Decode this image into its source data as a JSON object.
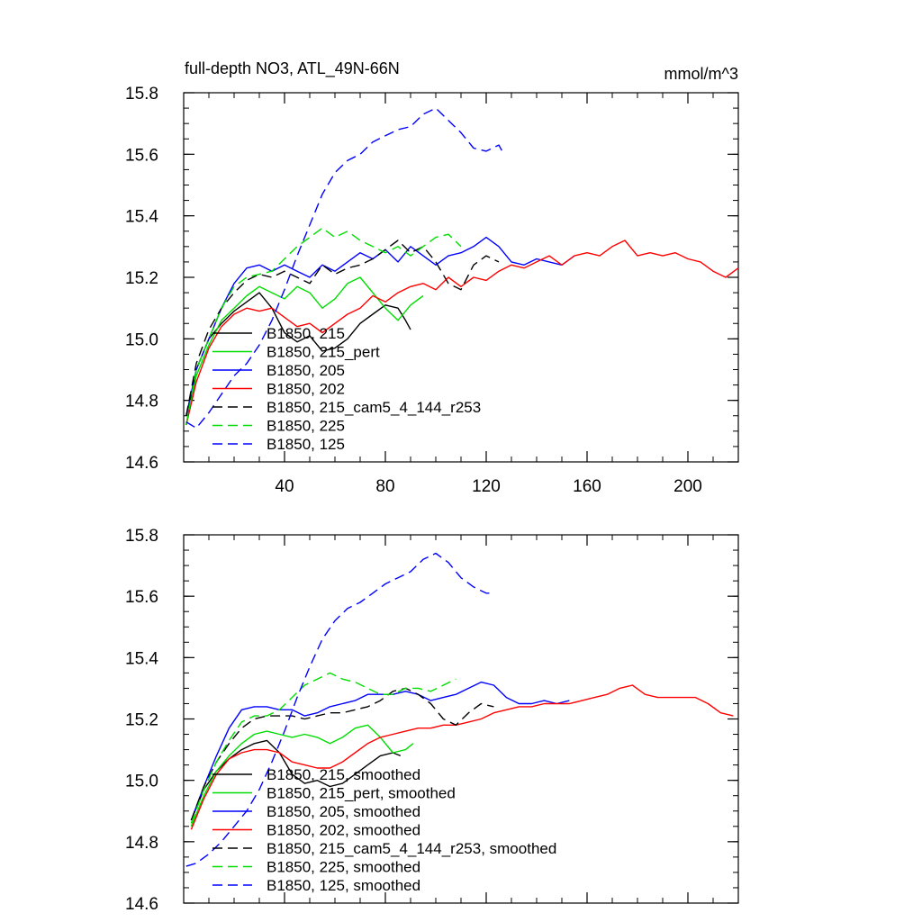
{
  "chart_data": [
    {
      "type": "line",
      "title": "full-depth NO3, ATL_49N-66N",
      "units": "mmol/m^3",
      "xlabel": "",
      "ylabel": "",
      "xlim": [
        0,
        220
      ],
      "ylim": [
        14.6,
        15.8
      ],
      "xticks": [
        40,
        80,
        120,
        160,
        200
      ],
      "yticks": [
        14.6,
        14.8,
        15.0,
        15.2,
        15.4,
        15.6,
        15.8
      ],
      "xtick_labels": [
        "40",
        "80",
        "120",
        "160",
        "200"
      ],
      "ytick_labels": [
        "14.6",
        "14.8",
        "15.0",
        "15.2",
        "15.4",
        "15.6",
        "15.8"
      ],
      "legend_position": "lower-left",
      "grid": false,
      "series": [
        {
          "name": "B1850, 215",
          "color": "#000000",
          "dash": "solid",
          "x": [
            1,
            5,
            10,
            15,
            20,
            25,
            30,
            35,
            40,
            45,
            50,
            55,
            60,
            65,
            70,
            75,
            80,
            85,
            88,
            90
          ],
          "y": [
            14.72,
            14.9,
            15.0,
            15.05,
            15.09,
            15.12,
            15.15,
            15.1,
            15.02,
            14.99,
            15.01,
            14.96,
            14.97,
            15.0,
            15.05,
            15.08,
            15.11,
            15.1,
            15.06,
            15.03
          ]
        },
        {
          "name": "B1850, 215_pert",
          "color": "#00dd00",
          "dash": "solid",
          "x": [
            1,
            5,
            10,
            15,
            20,
            25,
            30,
            35,
            40,
            45,
            50,
            55,
            60,
            65,
            70,
            75,
            80,
            85,
            90,
            95
          ],
          "y": [
            14.72,
            14.88,
            14.98,
            15.06,
            15.1,
            15.14,
            15.17,
            15.15,
            15.13,
            15.17,
            15.15,
            15.1,
            15.13,
            15.18,
            15.2,
            15.15,
            15.1,
            15.06,
            15.11,
            15.14
          ]
        },
        {
          "name": "B1850, 205",
          "color": "#0000ff",
          "dash": "solid",
          "x": [
            1,
            5,
            10,
            15,
            20,
            25,
            30,
            35,
            40,
            45,
            50,
            55,
            60,
            65,
            70,
            75,
            80,
            85,
            90,
            95,
            100,
            105,
            110,
            115,
            120,
            125,
            130,
            135,
            140,
            145,
            150,
            155
          ],
          "y": [
            14.75,
            14.9,
            15.0,
            15.1,
            15.18,
            15.23,
            15.24,
            15.22,
            15.24,
            15.22,
            15.2,
            15.24,
            15.22,
            15.25,
            15.28,
            15.26,
            15.29,
            15.25,
            15.3,
            15.27,
            15.24,
            15.27,
            15.28,
            15.3,
            15.33,
            15.3,
            15.25,
            15.24,
            15.26,
            15.25,
            15.24,
            15.27
          ]
        },
        {
          "name": "B1850, 202",
          "color": "#ff0000",
          "dash": "solid",
          "x": [
            1,
            5,
            10,
            15,
            20,
            25,
            30,
            35,
            40,
            45,
            50,
            55,
            60,
            65,
            70,
            75,
            80,
            85,
            90,
            95,
            100,
            105,
            110,
            115,
            120,
            125,
            130,
            135,
            140,
            145,
            150,
            155,
            160,
            165,
            170,
            175,
            180,
            185,
            190,
            195,
            200,
            205,
            210,
            215,
            220
          ],
          "y": [
            14.72,
            14.86,
            14.97,
            15.04,
            15.08,
            15.1,
            15.09,
            15.1,
            15.07,
            15.04,
            15.05,
            15.02,
            15.05,
            15.08,
            15.1,
            15.14,
            15.12,
            15.15,
            15.17,
            15.18,
            15.16,
            15.2,
            15.17,
            15.2,
            15.19,
            15.22,
            15.24,
            15.23,
            15.25,
            15.27,
            15.24,
            15.27,
            15.28,
            15.27,
            15.3,
            15.32,
            15.27,
            15.28,
            15.27,
            15.28,
            15.26,
            15.25,
            15.22,
            15.2,
            15.23
          ]
        },
        {
          "name": "B1850, 215_cam5_4_144_r253",
          "color": "#000000",
          "dash": "dashed",
          "x": [
            1,
            5,
            10,
            15,
            20,
            25,
            30,
            35,
            40,
            45,
            50,
            55,
            60,
            65,
            70,
            75,
            80,
            85,
            90,
            95,
            100,
            105,
            110,
            115,
            120,
            125
          ],
          "y": [
            14.75,
            14.92,
            15.03,
            15.1,
            15.15,
            15.19,
            15.21,
            15.2,
            15.22,
            15.2,
            15.18,
            15.24,
            15.21,
            15.23,
            15.24,
            15.26,
            15.29,
            15.32,
            15.28,
            15.3,
            15.25,
            15.18,
            15.16,
            15.24,
            15.27,
            15.25
          ]
        },
        {
          "name": "B1850, 225",
          "color": "#00dd00",
          "dash": "dashed",
          "x": [
            1,
            5,
            10,
            15,
            20,
            25,
            30,
            35,
            40,
            45,
            50,
            55,
            60,
            65,
            70,
            75,
            80,
            85,
            90,
            95,
            100,
            105,
            110
          ],
          "y": [
            14.72,
            14.9,
            15.0,
            15.1,
            15.17,
            15.2,
            15.21,
            15.22,
            15.26,
            15.3,
            15.33,
            15.36,
            15.33,
            15.35,
            15.32,
            15.3,
            15.28,
            15.3,
            15.27,
            15.3,
            15.33,
            15.34,
            15.3
          ]
        },
        {
          "name": "B1850, 125",
          "color": "#0000ff",
          "dash": "dashed",
          "x": [
            1,
            5,
            10,
            15,
            20,
            25,
            30,
            35,
            40,
            45,
            50,
            55,
            60,
            65,
            70,
            75,
            80,
            85,
            90,
            95,
            100,
            105,
            110,
            115,
            120,
            125,
            127
          ],
          "y": [
            14.73,
            14.71,
            14.76,
            14.82,
            14.88,
            14.92,
            14.98,
            15.06,
            15.16,
            15.27,
            15.37,
            15.47,
            15.54,
            15.58,
            15.6,
            15.64,
            15.66,
            15.68,
            15.69,
            15.73,
            15.75,
            15.71,
            15.67,
            15.62,
            15.61,
            15.63,
            15.6
          ]
        }
      ]
    },
    {
      "type": "line",
      "title": "",
      "xlabel": "",
      "ylabel": "",
      "xlim": [
        0,
        220
      ],
      "ylim": [
        14.6,
        15.8
      ],
      "xticks": [
        40,
        80,
        120,
        160,
        200
      ],
      "yticks": [
        14.6,
        14.8,
        15.0,
        15.2,
        15.4,
        15.6,
        15.8
      ],
      "ytick_labels": [
        "14.6",
        "14.8",
        "15.0",
        "15.2",
        "15.4",
        "15.6",
        "15.8"
      ],
      "legend_position": "lower-left",
      "grid": false,
      "series": [
        {
          "name": "B1850, 215, smoothed",
          "color": "#000000",
          "dash": "solid",
          "x": [
            3,
            8,
            13,
            18,
            23,
            28,
            33,
            38,
            43,
            48,
            53,
            58,
            63,
            68,
            73,
            78,
            83,
            86
          ],
          "y": [
            14.87,
            14.97,
            15.03,
            15.07,
            15.1,
            15.12,
            15.13,
            15.09,
            15.02,
            14.99,
            15.0,
            14.98,
            14.99,
            15.02,
            15.05,
            15.08,
            15.09,
            15.08
          ]
        },
        {
          "name": "B1850, 215_pert, smoothed",
          "color": "#00dd00",
          "dash": "solid",
          "x": [
            3,
            8,
            13,
            18,
            23,
            28,
            33,
            38,
            43,
            48,
            53,
            58,
            63,
            68,
            73,
            78,
            83,
            88,
            91
          ],
          "y": [
            14.85,
            14.95,
            15.03,
            15.08,
            15.12,
            15.15,
            15.16,
            15.15,
            15.14,
            15.15,
            15.14,
            15.12,
            15.14,
            15.17,
            15.18,
            15.14,
            15.09,
            15.1,
            15.12
          ]
        },
        {
          "name": "B1850, 205, smoothed",
          "color": "#0000ff",
          "dash": "solid",
          "x": [
            3,
            8,
            13,
            18,
            23,
            28,
            33,
            38,
            43,
            48,
            53,
            58,
            63,
            68,
            73,
            78,
            83,
            88,
            93,
            98,
            103,
            108,
            113,
            118,
            123,
            128,
            133,
            138,
            143,
            148,
            153
          ],
          "y": [
            14.87,
            14.98,
            15.08,
            15.17,
            15.23,
            15.24,
            15.24,
            15.23,
            15.23,
            15.21,
            15.22,
            15.24,
            15.25,
            15.26,
            15.28,
            15.28,
            15.28,
            15.29,
            15.28,
            15.26,
            15.27,
            15.28,
            15.3,
            15.32,
            15.31,
            15.27,
            15.25,
            15.25,
            15.26,
            15.25,
            15.26
          ]
        },
        {
          "name": "B1850, 202, smoothed",
          "color": "#ff0000",
          "dash": "solid",
          "x": [
            3,
            8,
            13,
            18,
            23,
            28,
            33,
            38,
            43,
            48,
            53,
            58,
            63,
            68,
            73,
            78,
            83,
            88,
            93,
            98,
            103,
            108,
            113,
            118,
            123,
            128,
            133,
            138,
            143,
            148,
            153,
            158,
            163,
            168,
            173,
            178,
            183,
            188,
            193,
            198,
            203,
            208,
            213,
            218
          ],
          "y": [
            14.84,
            14.94,
            15.02,
            15.07,
            15.09,
            15.1,
            15.1,
            15.09,
            15.06,
            15.05,
            15.04,
            15.04,
            15.06,
            15.09,
            15.12,
            15.14,
            15.15,
            15.16,
            15.17,
            15.17,
            15.18,
            15.18,
            15.19,
            15.2,
            15.22,
            15.23,
            15.24,
            15.24,
            15.25,
            15.25,
            15.25,
            15.26,
            15.27,
            15.28,
            15.3,
            15.31,
            15.28,
            15.27,
            15.27,
            15.27,
            15.27,
            15.25,
            15.22,
            15.21
          ]
        },
        {
          "name": "B1850, 215_cam5_4_144_r253, smoothed",
          "color": "#000000",
          "dash": "dashed",
          "x": [
            3,
            8,
            13,
            18,
            23,
            28,
            33,
            38,
            43,
            48,
            53,
            58,
            63,
            68,
            73,
            78,
            83,
            88,
            93,
            98,
            103,
            108,
            113,
            118,
            123
          ],
          "y": [
            14.87,
            14.98,
            15.06,
            15.12,
            15.17,
            15.2,
            15.21,
            15.21,
            15.21,
            15.2,
            15.21,
            15.22,
            15.22,
            15.23,
            15.24,
            15.26,
            15.29,
            15.3,
            15.28,
            15.25,
            15.2,
            15.18,
            15.22,
            15.25,
            15.24
          ]
        },
        {
          "name": "B1850, 225, smoothed",
          "color": "#00dd00",
          "dash": "dashed",
          "x": [
            3,
            8,
            13,
            18,
            23,
            28,
            33,
            38,
            43,
            48,
            53,
            58,
            63,
            68,
            73,
            78,
            83,
            88,
            93,
            98,
            103,
            108
          ],
          "y": [
            14.86,
            14.97,
            15.06,
            15.13,
            15.19,
            15.21,
            15.21,
            15.23,
            15.27,
            15.31,
            15.33,
            15.35,
            15.33,
            15.32,
            15.3,
            15.28,
            15.28,
            15.3,
            15.3,
            15.29,
            15.31,
            15.33
          ]
        },
        {
          "name": "B1850, 125, smoothed",
          "color": "#0000ff",
          "dash": "dashed",
          "x": [
            1,
            5,
            10,
            15,
            20,
            25,
            30,
            35,
            40,
            45,
            50,
            55,
            60,
            65,
            70,
            75,
            80,
            85,
            90,
            95,
            100,
            105,
            110,
            115,
            120,
            122
          ],
          "y": [
            14.72,
            14.73,
            14.76,
            14.8,
            14.85,
            14.9,
            14.97,
            15.06,
            15.16,
            15.27,
            15.37,
            15.46,
            15.52,
            15.56,
            15.58,
            15.61,
            15.64,
            15.66,
            15.68,
            15.72,
            15.74,
            15.71,
            15.66,
            15.63,
            15.61,
            15.61
          ]
        }
      ]
    }
  ]
}
